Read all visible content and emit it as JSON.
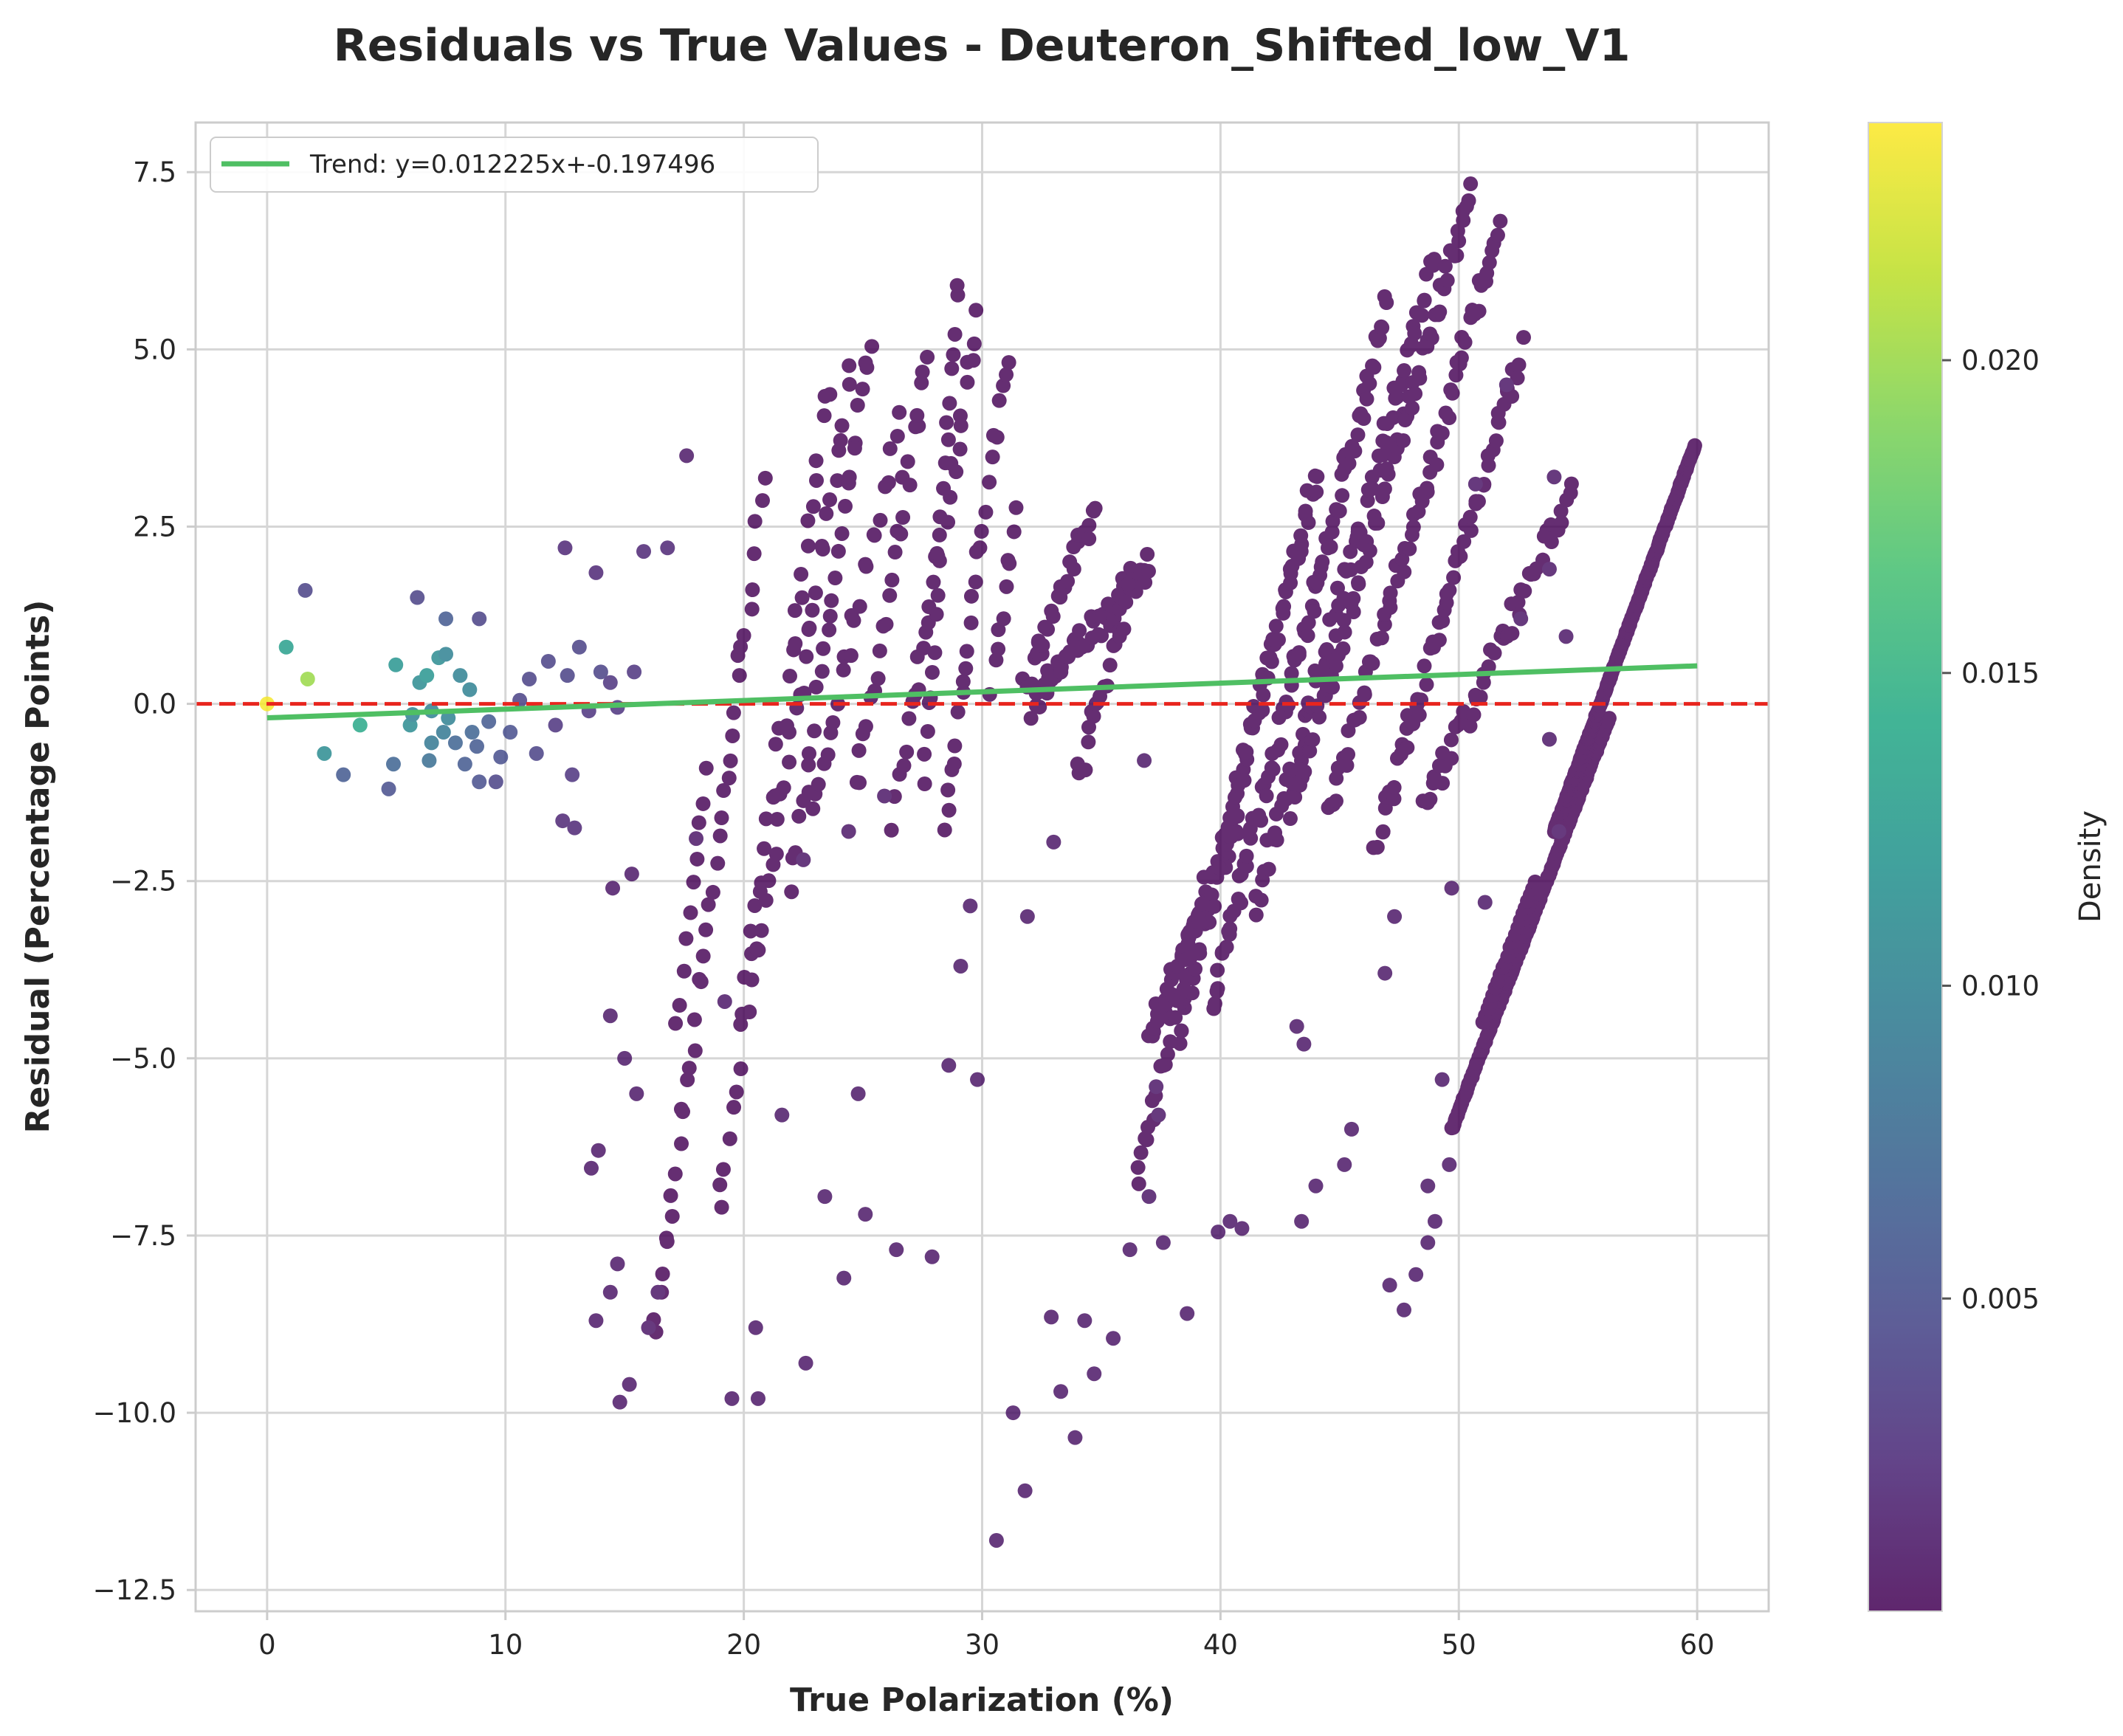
{
  "chart_data": {
    "type": "scatter",
    "title": "Residuals vs True Values - Deuteron_Shifted_low_V1",
    "xlabel": "True Polarization (%)",
    "ylabel": "Residual (Percentage Points)",
    "xlim": [
      -3,
      63
    ],
    "ylim": [
      -12.8,
      8.2
    ],
    "xticks": [
      0,
      10,
      20,
      30,
      40,
      50,
      60
    ],
    "yticks": [
      -12.5,
      -10.0,
      -7.5,
      -5.0,
      -2.5,
      0.0,
      2.5,
      5.0,
      7.5
    ],
    "ytick_labels": [
      "−12.5",
      "−10.0",
      "−7.5",
      "−5.0",
      "−2.5",
      "0.0",
      "2.5",
      "5.0",
      "7.5"
    ],
    "grid": true,
    "legend_position": "top-left",
    "reference_line": {
      "y": 0,
      "color": "#e8251e",
      "style": "dashed"
    },
    "trend": {
      "label": "Trend: y=0.012225x+-0.197496",
      "slope": 0.012225,
      "intercept": -0.197496,
      "x_range": [
        0,
        60
      ],
      "color": "#4fbf63"
    },
    "colorbar": {
      "label": "Density",
      "colormap": "viridis",
      "range": [
        0.0,
        0.0238
      ],
      "ticks": [
        0.005,
        0.01,
        0.015,
        0.02
      ],
      "tick_labels": [
        "0.005",
        "0.010",
        "0.015",
        "0.020"
      ]
    },
    "points": [
      [
        0.0,
        0.0,
        0.0235
      ],
      [
        0.8,
        0.8,
        0.013
      ],
      [
        1.7,
        0.35,
        0.02
      ],
      [
        1.6,
        1.6,
        0.004
      ],
      [
        2.4,
        -0.7,
        0.011
      ],
      [
        3.2,
        -1.0,
        0.006
      ],
      [
        3.9,
        -0.3,
        0.014
      ],
      [
        5.1,
        -1.2,
        0.005
      ],
      [
        5.4,
        0.55,
        0.012
      ],
      [
        5.3,
        -0.85,
        0.007
      ],
      [
        6.0,
        -0.3,
        0.011
      ],
      [
        6.1,
        -0.15,
        0.01
      ],
      [
        6.4,
        0.3,
        0.011
      ],
      [
        6.7,
        0.4,
        0.012
      ],
      [
        6.3,
        1.5,
        0.004
      ],
      [
        6.9,
        -0.55,
        0.009
      ],
      [
        6.8,
        -0.8,
        0.008
      ],
      [
        6.9,
        -0.1,
        0.01
      ],
      [
        7.2,
        0.65,
        0.011
      ],
      [
        7.5,
        0.7,
        0.01
      ],
      [
        7.4,
        -0.4,
        0.009
      ],
      [
        7.6,
        -0.2,
        0.01
      ],
      [
        7.9,
        -0.55,
        0.007
      ],
      [
        8.1,
        0.4,
        0.01
      ],
      [
        8.3,
        -0.85,
        0.006
      ],
      [
        8.5,
        0.2,
        0.01
      ],
      [
        8.6,
        -0.4,
        0.007
      ],
      [
        8.8,
        -0.6,
        0.006
      ],
      [
        7.5,
        1.2,
        0.006
      ],
      [
        8.9,
        1.2,
        0.004
      ],
      [
        8.9,
        -1.1,
        0.005
      ],
      [
        9.3,
        -0.25,
        0.006
      ],
      [
        9.8,
        -0.75,
        0.005
      ],
      [
        9.6,
        -1.1,
        0.004
      ],
      [
        10.2,
        -0.4,
        0.005
      ],
      [
        10.6,
        0.05,
        0.004
      ],
      [
        11.0,
        0.35,
        0.004
      ],
      [
        11.3,
        -0.7,
        0.004
      ],
      [
        11.8,
        0.6,
        0.004
      ],
      [
        12.1,
        -0.3,
        0.003
      ],
      [
        12.6,
        0.4,
        0.004
      ],
      [
        12.8,
        -1.0,
        0.003
      ],
      [
        13.1,
        0.8,
        0.004
      ],
      [
        13.5,
        -0.1,
        0.003
      ],
      [
        14.0,
        0.45,
        0.004
      ],
      [
        14.4,
        0.3,
        0.003
      ],
      [
        14.7,
        -0.05,
        0.003
      ],
      [
        15.4,
        0.45,
        0.003
      ],
      [
        12.5,
        2.2,
        0.002
      ],
      [
        13.8,
        1.85,
        0.002
      ],
      [
        15.8,
        2.15,
        0.002
      ],
      [
        16.8,
        2.2,
        0.002
      ],
      [
        12.4,
        -1.65,
        0.002
      ],
      [
        12.9,
        -1.75,
        0.002
      ],
      [
        14.5,
        -2.6,
        0.001
      ],
      [
        15.3,
        -2.4,
        0.001
      ],
      [
        14.4,
        -4.4,
        0.001
      ],
      [
        15.0,
        -5.0,
        0.001
      ],
      [
        15.5,
        -5.5,
        0.001
      ],
      [
        13.9,
        -6.3,
        0.001
      ],
      [
        13.6,
        -6.55,
        0.001
      ],
      [
        14.7,
        -7.9,
        0.001
      ],
      [
        14.4,
        -8.3,
        0.001
      ],
      [
        13.8,
        -8.7,
        0.001
      ],
      [
        14.8,
        -9.85,
        0.001
      ],
      [
        15.2,
        -9.6,
        0.001
      ],
      [
        16.0,
        -8.8,
        0.001
      ],
      [
        16.4,
        -8.3,
        0.001
      ],
      [
        17.6,
        3.5,
        0.001
      ],
      [
        18.0,
        -1.9,
        0.001
      ],
      [
        19.2,
        -4.2,
        0.001
      ],
      [
        19.5,
        -9.8,
        0.001
      ],
      [
        20.6,
        -9.8,
        0.001
      ],
      [
        20.5,
        -8.8,
        0.001
      ],
      [
        22.6,
        -9.3,
        0.001
      ],
      [
        21.6,
        -5.8,
        0.001
      ],
      [
        23.4,
        -6.95,
        0.001
      ],
      [
        24.2,
        -8.1,
        0.001
      ],
      [
        24.8,
        -5.5,
        0.001
      ],
      [
        25.1,
        -7.2,
        0.001
      ],
      [
        26.4,
        -7.7,
        0.001
      ],
      [
        27.9,
        -7.8,
        0.001
      ],
      [
        28.6,
        -5.1,
        0.001
      ],
      [
        29.8,
        -5.3,
        0.001
      ],
      [
        29.1,
        -3.7,
        0.001
      ],
      [
        30.6,
        -11.8,
        0.001
      ],
      [
        31.3,
        -10.0,
        0.001
      ],
      [
        31.8,
        -11.1,
        0.001
      ],
      [
        32.9,
        -8.65,
        0.001
      ],
      [
        33.3,
        -9.7,
        0.001
      ],
      [
        33.9,
        -10.35,
        0.001
      ],
      [
        34.3,
        -8.7,
        0.001
      ],
      [
        34.7,
        -9.45,
        0.001
      ],
      [
        35.5,
        -8.95,
        0.001
      ],
      [
        38.6,
        -8.6,
        0.001
      ],
      [
        39.9,
        -7.45,
        0.001
      ],
      [
        40.4,
        -7.3,
        0.001
      ],
      [
        40.9,
        -7.4,
        0.001
      ],
      [
        43.4,
        -7.3,
        0.001
      ],
      [
        44.0,
        -6.8,
        0.001
      ],
      [
        47.1,
        -8.2,
        0.001
      ],
      [
        47.7,
        -8.55,
        0.001
      ],
      [
        48.2,
        -8.05,
        0.001
      ],
      [
        48.7,
        -7.6,
        0.001
      ],
      [
        49.0,
        -7.3,
        0.001
      ],
      [
        48.7,
        -6.8,
        0.001
      ],
      [
        49.6,
        -6.5,
        0.001
      ],
      [
        49.3,
        -5.3,
        0.001
      ],
      [
        50.7,
        3.1,
        0.001
      ],
      [
        52.0,
        4.5,
        0.001
      ],
      [
        54.0,
        3.2,
        0.001
      ],
      [
        54.5,
        0.95,
        0.001
      ],
      [
        53.8,
        1.9,
        0.001
      ],
      [
        52.6,
        1.2,
        0.001
      ],
      [
        53.8,
        -0.5,
        0.001
      ],
      [
        54.2,
        -1.8,
        0.001
      ],
      [
        51.1,
        -2.8,
        0.001
      ],
      [
        49.7,
        -2.6,
        0.001
      ],
      [
        45.5,
        -6.0,
        0.001
      ],
      [
        45.2,
        -6.5,
        0.001
      ],
      [
        46.9,
        -3.8,
        0.001
      ],
      [
        47.3,
        -3.0,
        0.001
      ],
      [
        43.2,
        -4.55,
        0.001
      ],
      [
        43.5,
        -4.8,
        0.001
      ],
      [
        37.0,
        -6.95,
        0.001
      ],
      [
        37.4,
        -5.8,
        0.001
      ],
      [
        36.2,
        -7.7,
        0.001
      ],
      [
        37.6,
        -7.6,
        0.001
      ],
      [
        37.3,
        -5.4,
        0.001
      ],
      [
        36.8,
        -0.8,
        0.001
      ],
      [
        33.0,
        -1.95,
        0.001
      ],
      [
        31.9,
        -3.0,
        0.001
      ],
      [
        29.5,
        -2.85,
        0.001
      ],
      [
        24.4,
        -1.8,
        0.001
      ],
      [
        25.9,
        -1.3,
        0.001
      ],
      [
        22.5,
        -2.2,
        0.001
      ]
    ],
    "bands": [
      {
        "x0": 17.2,
        "y0": -4.6,
        "x1": 18.4,
        "y1": -0.9,
        "n": 10,
        "spread": 0.22
      },
      {
        "x0": 16.2,
        "y0": -9.0,
        "x1": 20.8,
        "y1": 3.0,
        "n": 40,
        "spread": 0.45
      },
      {
        "x0": 19.0,
        "y0": -7.0,
        "x1": 23.5,
        "y1": 4.5,
        "n": 36,
        "spread": 0.45
      },
      {
        "x0": 20.2,
        "y0": -4.2,
        "x1": 24.5,
        "y1": 4.6,
        "n": 32,
        "spread": 0.4
      },
      {
        "x0": 22.0,
        "y0": -2.5,
        "x1": 25.3,
        "y1": 5.2,
        "n": 28,
        "spread": 0.4
      },
      {
        "x0": 22.8,
        "y0": -1.6,
        "x1": 26.5,
        "y1": 4.0,
        "n": 24,
        "spread": 0.4
      },
      {
        "x0": 24.7,
        "y0": -1.2,
        "x1": 27.7,
        "y1": 5.0,
        "n": 26,
        "spread": 0.4
      },
      {
        "x0": 26.3,
        "y0": -1.6,
        "x1": 29.8,
        "y1": 5.4,
        "n": 30,
        "spread": 0.4
      },
      {
        "x0": 27.5,
        "y0": -1.2,
        "x1": 29.0,
        "y1": 6.0,
        "n": 22,
        "spread": 0.4
      },
      {
        "x0": 28.4,
        "y0": -1.8,
        "x1": 31.0,
        "y1": 5.0,
        "n": 26,
        "spread": 0.4
      },
      {
        "x0": 30.4,
        "y0": 0.2,
        "x1": 31.4,
        "y1": 2.7,
        "n": 10,
        "spread": 0.35
      },
      {
        "x0": 32.0,
        "y0": 0.0,
        "x1": 37.0,
        "y1": 2.0,
        "n": 60,
        "spread": 0.45
      },
      {
        "x0": 31.8,
        "y0": 0.3,
        "x1": 34.8,
        "y1": 2.8,
        "n": 30,
        "spread": 0.4
      },
      {
        "x0": 34.0,
        "y0": -1.0,
        "x1": 36.2,
        "y1": 1.5,
        "n": 20,
        "spread": 0.4
      },
      {
        "x0": 37.0,
        "y0": -4.7,
        "x1": 40.8,
        "y1": -1.6,
        "n": 70,
        "spread": 0.35
      },
      {
        "x0": 38.2,
        "y0": -4.6,
        "x1": 44.0,
        "y1": 3.2,
        "n": 90,
        "spread": 0.4
      },
      {
        "x0": 39.6,
        "y0": -4.2,
        "x1": 47.0,
        "y1": 5.6,
        "n": 90,
        "spread": 0.4
      },
      {
        "x0": 41.5,
        "y0": -2.8,
        "x1": 49.0,
        "y1": 6.3,
        "n": 80,
        "spread": 0.4
      },
      {
        "x0": 43.0,
        "y0": -1.5,
        "x1": 50.5,
        "y1": 7.2,
        "n": 80,
        "spread": 0.4
      },
      {
        "x0": 44.5,
        "y0": -1.6,
        "x1": 51.7,
        "y1": 6.7,
        "n": 70,
        "spread": 0.4
      },
      {
        "x0": 46.5,
        "y0": -2.0,
        "x1": 52.6,
        "y1": 5.0,
        "n": 60,
        "spread": 0.4
      },
      {
        "x0": 48.5,
        "y0": -1.5,
        "x1": 54.7,
        "y1": 3.0,
        "n": 50,
        "spread": 0.4
      },
      {
        "x0": 36.5,
        "y0": -6.6,
        "x1": 39.4,
        "y1": -2.5,
        "n": 28,
        "spread": 0.4
      },
      {
        "x0": 49.7,
        "y0": -6.0,
        "x1": 56.3,
        "y1": -0.2,
        "n": 140,
        "spread": 0.04
      },
      {
        "x0": 51.0,
        "y0": -4.5,
        "x1": 53.2,
        "y1": -2.5,
        "n": 22,
        "spread": 0.04
      },
      {
        "x0": 54.0,
        "y0": -1.8,
        "x1": 59.9,
        "y1": 3.65,
        "n": 200,
        "spread": 0.04
      }
    ]
  }
}
